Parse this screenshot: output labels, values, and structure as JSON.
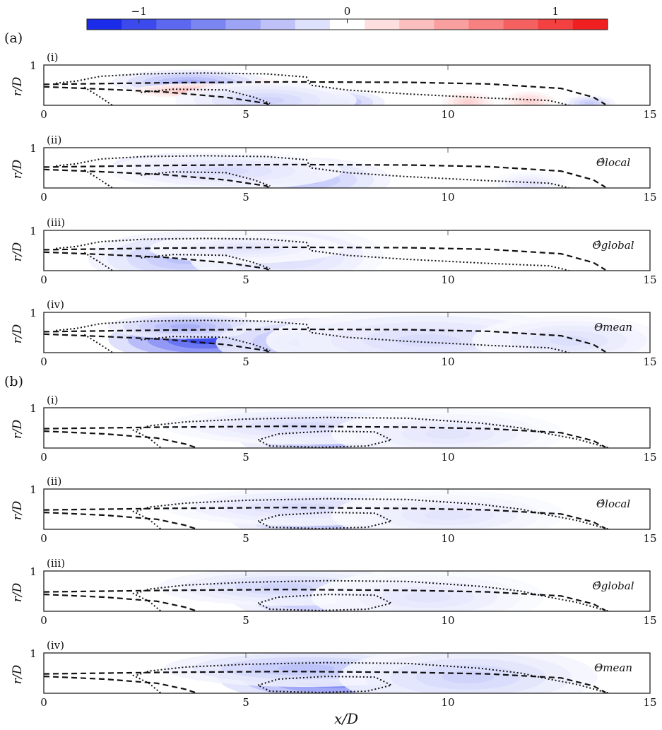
{
  "chart_data": {
    "type": "heatmap",
    "colorbar": {
      "range": [
        -1.25,
        1.25
      ],
      "ticks": [
        {
          "v": -1,
          "label": "−1"
        },
        {
          "v": 0,
          "label": "0"
        },
        {
          "v": 1,
          "label": "1"
        }
      ],
      "low_color": "#0a1ce8",
      "mid_color": "#ffffff",
      "high_color": "#f01010",
      "levels": 15
    },
    "xlim": [
      0,
      15
    ],
    "ylim": [
      0,
      1
    ],
    "xticks": [
      0,
      5,
      10,
      15
    ],
    "yticks": [
      1
    ],
    "xlabel": "x/D",
    "ylabel": "r/D",
    "groups": [
      {
        "label": "(a)",
        "panels": [
          {
            "label": "(i)",
            "annotation": "",
            "blobs": [
              {
                "x": 3.6,
                "r": 0.58,
                "sx": 1.2,
                "sr": 0.1,
                "v": -0.45
              },
              {
                "x": 3.8,
                "r": 0.36,
                "sx": 1.0,
                "sr": 0.06,
                "v": 0.35
              },
              {
                "x": 5.5,
                "r": 0.42,
                "sx": 0.25,
                "sr": 0.08,
                "v": 0.3
              },
              {
                "x": 7.0,
                "r": 0.08,
                "sx": 0.9,
                "sr": 0.1,
                "v": -0.5
              },
              {
                "x": 5.5,
                "r": 0.12,
                "sx": 1.4,
                "sr": 0.15,
                "v": -0.25
              },
              {
                "x": 10.5,
                "r": 0.08,
                "sx": 0.4,
                "sr": 0.08,
                "v": 0.25
              },
              {
                "x": 12.0,
                "r": 0.1,
                "sx": 0.4,
                "sr": 0.08,
                "v": 0.25
              },
              {
                "x": 13.5,
                "r": 0.06,
                "sx": 0.4,
                "sr": 0.06,
                "v": -0.3
              }
            ]
          },
          {
            "label": "(ii)",
            "annotation": "Θ̂local",
            "blobs": [
              {
                "x": 3.8,
                "r": 0.6,
                "sx": 1.3,
                "sr": 0.09,
                "v": -0.5
              },
              {
                "x": 6.5,
                "r": 0.2,
                "sx": 1.3,
                "sr": 0.18,
                "v": -0.35
              },
              {
                "x": 4.5,
                "r": 0.42,
                "sx": 1.8,
                "sr": 0.15,
                "v": -0.2
              },
              {
                "x": 12.0,
                "r": 0.1,
                "sx": 0.6,
                "sr": 0.1,
                "v": -0.15
              }
            ]
          },
          {
            "label": "(iii)",
            "annotation": "Θ̂global",
            "blobs": [
              {
                "x": 3.5,
                "r": 0.3,
                "sx": 1.5,
                "sr": 0.22,
                "v": -0.35
              },
              {
                "x": 6.0,
                "r": 0.35,
                "sx": 1.5,
                "sr": 0.25,
                "v": -0.2
              },
              {
                "x": 5.0,
                "r": 0.55,
                "sx": 1.5,
                "sr": 0.12,
                "v": -0.15
              }
            ]
          },
          {
            "label": "(iv)",
            "annotation": "Θmean",
            "blobs": [
              {
                "x": 4.0,
                "r": 0.32,
                "sx": 1.5,
                "sr": 0.18,
                "v": -1.0
              },
              {
                "x": 3.5,
                "r": 0.65,
                "sx": 1.2,
                "sr": 0.1,
                "v": -0.45
              },
              {
                "x": 6.5,
                "r": 0.25,
                "sx": 1.4,
                "sr": 0.2,
                "v": -0.45
              },
              {
                "x": 9.5,
                "r": 0.3,
                "sx": 2.5,
                "sr": 0.25,
                "v": -0.2
              },
              {
                "x": 13.0,
                "r": 0.3,
                "sx": 1.5,
                "sr": 0.2,
                "v": -0.18
              }
            ]
          }
        ]
      },
      {
        "label": "(b)",
        "panels": [
          {
            "label": "(i)",
            "annotation": "",
            "blobs": [
              {
                "x": 7.2,
                "r": 0.28,
                "sx": 1.5,
                "sr": 0.2,
                "v": -0.5
              },
              {
                "x": 6.5,
                "r": 0.55,
                "sx": 2.2,
                "sr": 0.15,
                "v": -0.2
              },
              {
                "x": 10.0,
                "r": 0.35,
                "sx": 1.8,
                "sr": 0.2,
                "v": -0.15
              }
            ]
          },
          {
            "label": "(ii)",
            "annotation": "Θ̂local",
            "blobs": [
              {
                "x": 7.0,
                "r": 0.3,
                "sx": 1.5,
                "sr": 0.2,
                "v": -0.45
              },
              {
                "x": 6.5,
                "r": 0.55,
                "sx": 2.2,
                "sr": 0.15,
                "v": -0.2
              },
              {
                "x": 10.0,
                "r": 0.35,
                "sx": 1.8,
                "sr": 0.2,
                "v": -0.15
              }
            ]
          },
          {
            "label": "(iii)",
            "annotation": "Θ̂global",
            "blobs": [
              {
                "x": 6.8,
                "r": 0.42,
                "sx": 1.4,
                "sr": 0.22,
                "v": -0.45
              },
              {
                "x": 6.0,
                "r": 0.6,
                "sx": 2.0,
                "sr": 0.15,
                "v": -0.25
              },
              {
                "x": 9.5,
                "r": 0.35,
                "sx": 1.8,
                "sr": 0.22,
                "v": -0.15
              }
            ]
          },
          {
            "label": "(iv)",
            "annotation": "Θmean",
            "blobs": [
              {
                "x": 7.2,
                "r": 0.38,
                "sx": 1.8,
                "sr": 0.2,
                "v": -0.85
              },
              {
                "x": 6.5,
                "r": 0.62,
                "sx": 2.2,
                "sr": 0.15,
                "v": -0.35
              },
              {
                "x": 10.5,
                "r": 0.4,
                "sx": 2.0,
                "sr": 0.25,
                "v": -0.25
              }
            ]
          }
        ]
      }
    ]
  }
}
